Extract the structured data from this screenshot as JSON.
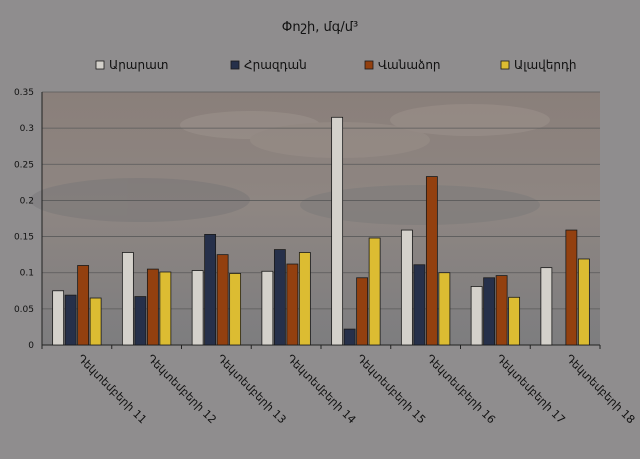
{
  "chart_data": {
    "type": "bar",
    "title": "Փոշի, մգ/մ³",
    "categories": [
      "Դեկտեմբերի 11",
      "Դեկտեմբերի 12",
      "Դեկտեմբերի 13",
      "Դեկտեմբերի 14",
      "Դեկտեմբերի 15",
      "Դեկտեմբերի 16",
      "Դեկտեմբերի 17",
      "Դեկտեմբերի 18"
    ],
    "series": [
      {
        "name": "Արարատ",
        "color": "#d4d1cb",
        "values": [
          0.075,
          0.128,
          0.103,
          0.102,
          0.315,
          0.159,
          0.081,
          0.107
        ]
      },
      {
        "name": "Հրազդան",
        "color": "#26304a",
        "values": [
          0.069,
          0.067,
          0.153,
          0.132,
          0.022,
          0.111,
          0.093,
          null
        ]
      },
      {
        "name": "Վանաձոր",
        "color": "#93400f",
        "values": [
          0.11,
          0.105,
          0.125,
          0.112,
          0.093,
          0.233,
          0.096,
          0.159
        ]
      },
      {
        "name": "Ալավերդի",
        "color": "#dcbc32",
        "values": [
          0.065,
          0.101,
          0.099,
          0.128,
          0.148,
          0.1,
          0.066,
          0.119
        ]
      }
    ],
    "ylim": [
      0,
      0.35
    ],
    "yticks": [
      "0",
      "0.05",
      "0.1",
      "0.15",
      "0.2",
      "0.25",
      "0.3",
      "0.35"
    ],
    "grid": true,
    "legend": "top"
  }
}
